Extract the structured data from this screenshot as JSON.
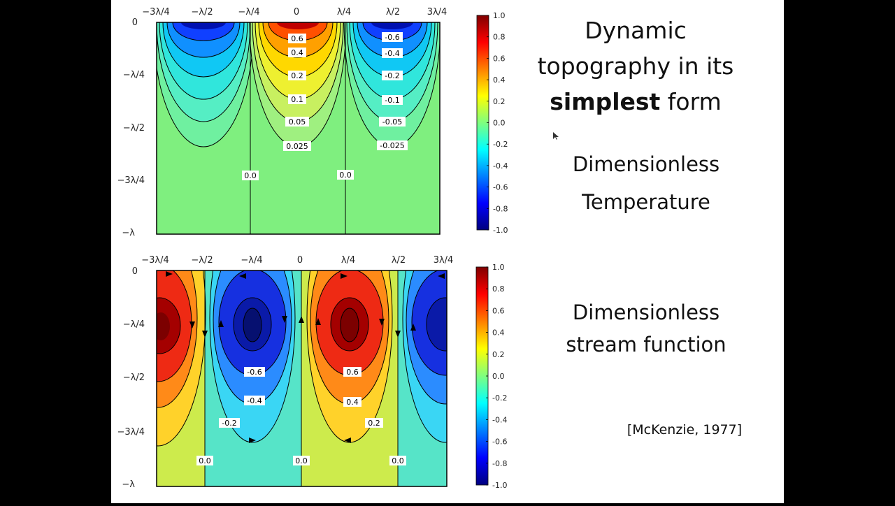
{
  "slide": {
    "title_line1": "Dynamic",
    "title_line2": "topography in its",
    "title_bold": "simplest",
    "title_rest": " form",
    "label_temperature_line1": "Dimensionless",
    "label_temperature_line2": "Temperature",
    "label_stream_line1": "Dimensionless",
    "label_stream_line2": "stream function",
    "citation": "[McKenzie, 1977]"
  },
  "colorscale": [
    "#00007f",
    "#0000ff",
    "#007fff",
    "#00ffff",
    "#7fff7f",
    "#ffff00",
    "#ff7f00",
    "#ff0000",
    "#7f0000"
  ],
  "chart_data": [
    {
      "type": "heatmap",
      "title": "",
      "x_tick_labels": [
        "−3λ/4",
        "−λ/2",
        "−λ/4",
        "0",
        "λ/4",
        "λ/2",
        "3λ/4"
      ],
      "y_tick_labels": [
        "0",
        "−λ/4",
        "−λ/2",
        "−3λ/4",
        "−λ"
      ],
      "colorbar": {
        "range": [
          -1.0,
          1.0
        ],
        "ticks": [
          "1.0",
          "0.8",
          "0.6",
          "0.4",
          "0.2",
          "0.0",
          "-0.2",
          "-0.4",
          "-0.6",
          "-0.8",
          "-1.0"
        ]
      },
      "contour_labels_center": [
        "0.6",
        "0.4",
        "0.2",
        "0.1",
        "0.05",
        "0.025"
      ],
      "contour_labels_right": [
        "-0.6",
        "-0.4",
        "-0.2",
        "-0.1",
        "-0.05",
        "-0.025"
      ],
      "zero_labels": [
        "0.0",
        "0.0"
      ]
    },
    {
      "type": "heatmap",
      "title": "",
      "x_tick_labels": [
        "−3λ/4",
        "−λ/2",
        "−λ/4",
        "0",
        "λ/4",
        "λ/2",
        "3λ/4"
      ],
      "y_tick_labels": [
        "0",
        "−λ/4",
        "−λ/2",
        "−3λ/4",
        "−λ"
      ],
      "colorbar": {
        "range": [
          -1.0,
          1.0
        ],
        "ticks": [
          "1.0",
          "0.8",
          "0.6",
          "0.4",
          "0.2",
          "0.0",
          "-0.2",
          "-0.4",
          "-0.6",
          "-0.8",
          "-1.0"
        ]
      },
      "contour_labels_left_cell": [
        "-0.6",
        "-0.4",
        "-0.2"
      ],
      "contour_labels_right_cell": [
        "0.6",
        "0.4",
        "0.2"
      ],
      "zero_labels": [
        "0.0",
        "0.0",
        "0.0"
      ]
    }
  ]
}
